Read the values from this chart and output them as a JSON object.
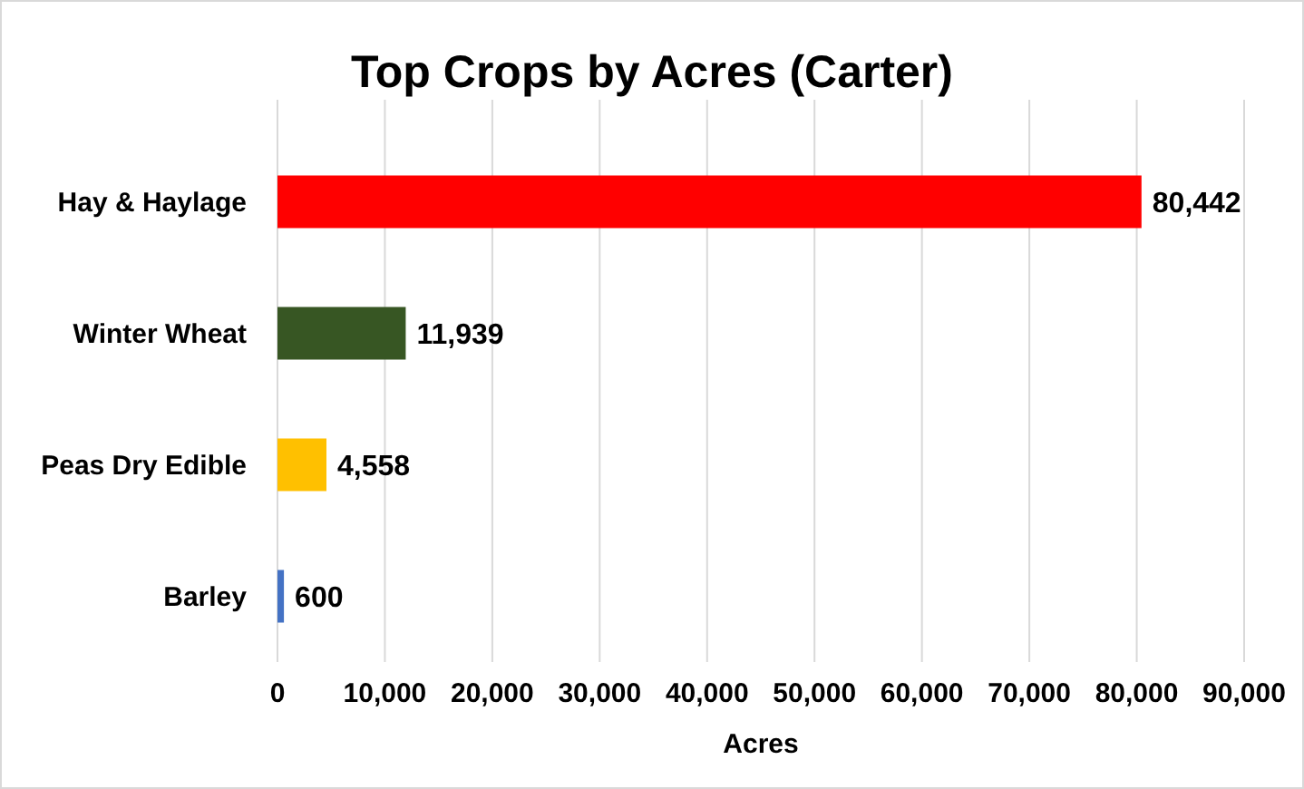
{
  "chart_data": {
    "type": "bar",
    "orientation": "horizontal",
    "title": "Top Crops by Acres (Carter)",
    "xlabel": "Acres",
    "categories": [
      "Hay & Haylage",
      "Winter Wheat",
      "Peas Dry Edible",
      "Barley"
    ],
    "values": [
      80442,
      11939,
      4558,
      600
    ],
    "colors": [
      "#ff0000",
      "#375623",
      "#ffc000",
      "#4472c4"
    ],
    "value_labels": [
      "80,442",
      "11,939",
      "4,558",
      "600"
    ],
    "xlim": [
      0,
      90000
    ],
    "xticks": [
      0,
      {
        "value": 10000,
        "label": "10,000"
      },
      {
        "value": 20000,
        "label": "20,000"
      },
      {
        "value": 30000,
        "label": "30,000"
      },
      {
        "value": 40000,
        "label": "40,000"
      },
      {
        "value": 50000,
        "label": "50,000"
      },
      {
        "value": 60000,
        "label": "60,000"
      },
      {
        "value": 70000,
        "label": "70,000"
      },
      {
        "value": 80000,
        "label": "80,000"
      },
      {
        "value": 90000,
        "label": "90,000"
      }
    ],
    "grid": "x"
  }
}
